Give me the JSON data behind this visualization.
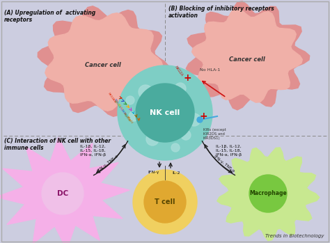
{
  "background_color": "#cccde0",
  "title": "Trends in Biotechnology",
  "panel_A_title": "(A) Upregulation of  activating\nreceptors",
  "panel_B_title": "(B) Blocking of inhibitory receptors\nactivation",
  "panel_C_title": "(C) Interaction of NK cell with other\nimmune cells",
  "nk_cell_label": "NK cell",
  "cancer_cell_label_A": "Cancer cell",
  "cancer_cell_label_B": "Cancer cell",
  "dc_label": "DC",
  "tcell_label": "T cell",
  "macrophage_label": "Macrophage",
  "dc_cytokines": "IL-1β, IL-12,\nIL-15, IL-18,\nIFN-α, IFN-β",
  "macro_cytokines": "IL-1β, IL-12,\nIL-15, IL-18,\nIFN-α, IFN-β",
  "dc_to_nk": "IFN-γ, TNF-α",
  "macro_to_nk": "IFN-γ, TNF-α",
  "tcell_labels": [
    "IFN-γ",
    "IL-2"
  ],
  "kirs_label": "KIRs (except\nKIR2DS and\nKIR3DS1)",
  "no_hla_label": "No HLA-1",
  "nk_outer_color": "#7ecec5",
  "nk_inner_color": "#4aab9e",
  "cancer_color_light": "#f0b0a8",
  "cancer_color_dark": "#e09090",
  "dc_color": "#f5b0e8",
  "dc_inner_color": "#f0c0e8",
  "tcell_outer": "#f0d060",
  "tcell_inner": "#e0a830",
  "macrophage_outer": "#c8e890",
  "macrophage_inner": "#78c840",
  "dashed_line_color": "#888888",
  "arrow_color": "#222222",
  "nk_spot_color": "#a8ddd8",
  "receptor_colors": [
    "#3355aa",
    "#cc2200",
    "#229944",
    "#ff8800",
    "#aa22cc",
    "#00aacc",
    "#ccaa00",
    "#cc5500"
  ],
  "red_cross_color": "#cc0000",
  "blue_dot_color": "#44aadd"
}
